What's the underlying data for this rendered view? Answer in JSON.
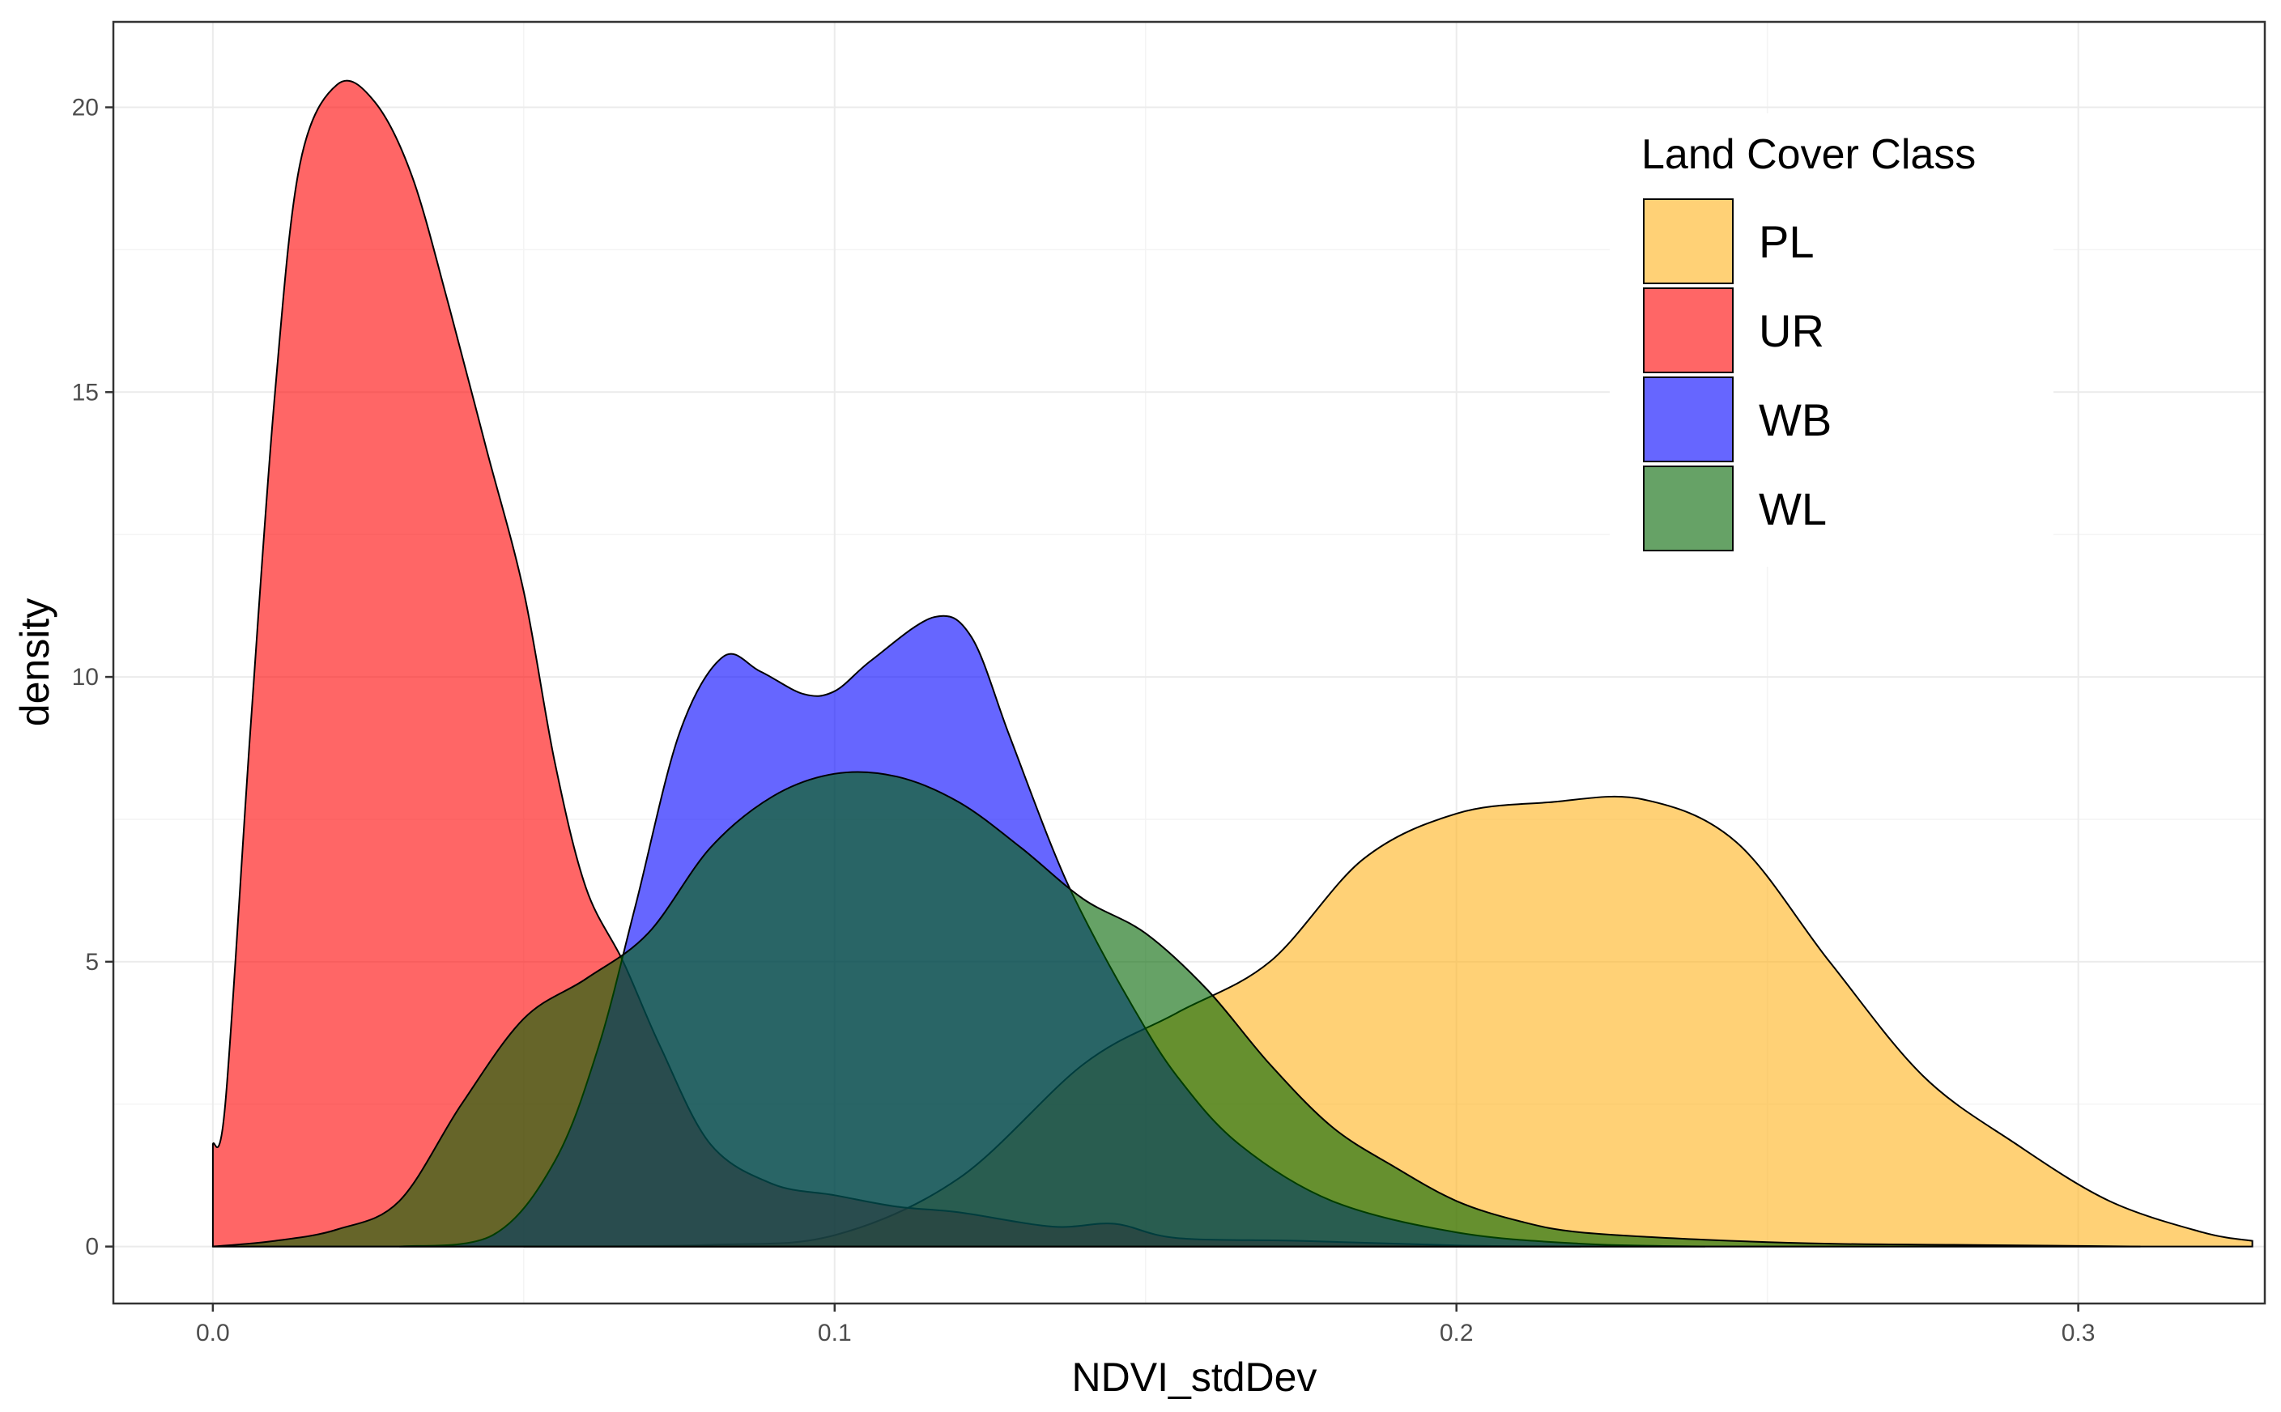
{
  "chart_data": {
    "type": "area",
    "subtype": "density",
    "title": "",
    "xlabel": "NDVI_stdDev",
    "ylabel": "density",
    "xlim": [
      -0.016,
      0.33
    ],
    "ylim": [
      -1.0,
      21.5
    ],
    "x_ticks": [
      0.0,
      0.1,
      0.2,
      0.3
    ],
    "x_tick_labels": [
      "0.0",
      "0.1",
      "0.2",
      "0.3"
    ],
    "y_ticks": [
      0,
      5,
      10,
      15,
      20
    ],
    "y_tick_labels": [
      "0",
      "5",
      "10",
      "15",
      "20"
    ],
    "grid": true,
    "legend": {
      "title": "Land Cover Class",
      "position": "top-right"
    },
    "series": [
      {
        "name": "PL",
        "color": "#FFB31A",
        "points": [
          [
            0.05,
            0
          ],
          [
            0.08,
            0.03
          ],
          [
            0.1,
            0.2
          ],
          [
            0.12,
            1.2
          ],
          [
            0.14,
            3.2
          ],
          [
            0.155,
            4.1
          ],
          [
            0.17,
            5.0
          ],
          [
            0.185,
            6.8
          ],
          [
            0.2,
            7.6
          ],
          [
            0.215,
            7.8
          ],
          [
            0.23,
            7.85
          ],
          [
            0.245,
            7.1
          ],
          [
            0.26,
            5.0
          ],
          [
            0.275,
            3.0
          ],
          [
            0.29,
            1.8
          ],
          [
            0.305,
            0.8
          ],
          [
            0.32,
            0.25
          ],
          [
            0.328,
            0.1
          ]
        ]
      },
      {
        "name": "UR",
        "color": "#FF0000",
        "points": [
          [
            0.0,
            1.8
          ],
          [
            0.002,
            2.5
          ],
          [
            0.006,
            9.0
          ],
          [
            0.01,
            15.0
          ],
          [
            0.014,
            19.0
          ],
          [
            0.02,
            20.4
          ],
          [
            0.026,
            20.1
          ],
          [
            0.032,
            18.8
          ],
          [
            0.038,
            16.5
          ],
          [
            0.044,
            14.0
          ],
          [
            0.05,
            11.5
          ],
          [
            0.055,
            8.5
          ],
          [
            0.06,
            6.3
          ],
          [
            0.066,
            5.0
          ],
          [
            0.072,
            3.5
          ],
          [
            0.08,
            1.8
          ],
          [
            0.09,
            1.1
          ],
          [
            0.1,
            0.9
          ],
          [
            0.11,
            0.7
          ],
          [
            0.12,
            0.6
          ],
          [
            0.135,
            0.35
          ],
          [
            0.145,
            0.4
          ],
          [
            0.155,
            0.15
          ],
          [
            0.175,
            0.1
          ],
          [
            0.2,
            0.02
          ],
          [
            0.22,
            0
          ]
        ]
      },
      {
        "name": "WB",
        "color": "#0000FF",
        "points": [
          [
            0.03,
            0
          ],
          [
            0.045,
            0.2
          ],
          [
            0.055,
            1.5
          ],
          [
            0.062,
            3.5
          ],
          [
            0.068,
            6.0
          ],
          [
            0.075,
            9.0
          ],
          [
            0.082,
            10.35
          ],
          [
            0.088,
            10.1
          ],
          [
            0.095,
            9.7
          ],
          [
            0.1,
            9.75
          ],
          [
            0.106,
            10.3
          ],
          [
            0.116,
            11.05
          ],
          [
            0.122,
            10.7
          ],
          [
            0.128,
            9.0
          ],
          [
            0.135,
            7.0
          ],
          [
            0.14,
            5.8
          ],
          [
            0.148,
            4.2
          ],
          [
            0.155,
            3.0
          ],
          [
            0.165,
            1.8
          ],
          [
            0.18,
            0.8
          ],
          [
            0.2,
            0.25
          ],
          [
            0.22,
            0.05
          ],
          [
            0.24,
            0
          ]
        ]
      },
      {
        "name": "WL",
        "color": "#006400",
        "points": [
          [
            0.0,
            0
          ],
          [
            0.01,
            0.1
          ],
          [
            0.02,
            0.3
          ],
          [
            0.03,
            0.8
          ],
          [
            0.04,
            2.5
          ],
          [
            0.05,
            4.0
          ],
          [
            0.06,
            4.7
          ],
          [
            0.07,
            5.5
          ],
          [
            0.08,
            7.0
          ],
          [
            0.09,
            7.9
          ],
          [
            0.1,
            8.3
          ],
          [
            0.11,
            8.25
          ],
          [
            0.12,
            7.8
          ],
          [
            0.13,
            7.0
          ],
          [
            0.14,
            6.1
          ],
          [
            0.15,
            5.5
          ],
          [
            0.16,
            4.5
          ],
          [
            0.17,
            3.2
          ],
          [
            0.18,
            2.1
          ],
          [
            0.19,
            1.4
          ],
          [
            0.2,
            0.8
          ],
          [
            0.21,
            0.45
          ],
          [
            0.22,
            0.25
          ],
          [
            0.24,
            0.12
          ],
          [
            0.26,
            0.05
          ],
          [
            0.28,
            0.03
          ],
          [
            0.3,
            0.01
          ],
          [
            0.31,
            0
          ]
        ]
      }
    ]
  }
}
